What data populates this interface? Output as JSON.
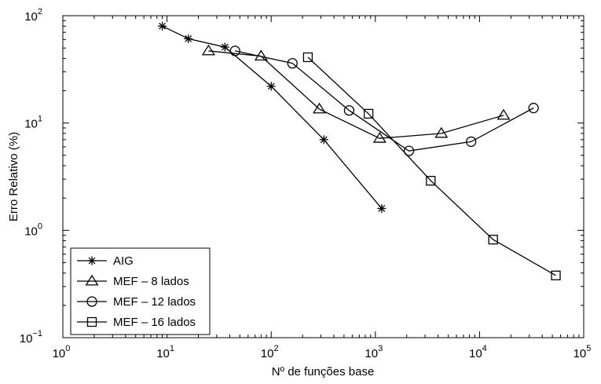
{
  "chart_data": {
    "type": "line",
    "xscale": "log",
    "yscale": "log",
    "xlim": [
      1,
      100000
    ],
    "ylim": [
      0.1,
      100
    ],
    "xlabel": "Nº de funções base",
    "ylabel": "Erro Relativo (%)",
    "x_ticks": [
      {
        "value": 1,
        "base": "10",
        "exp": "0"
      },
      {
        "value": 10,
        "base": "10",
        "exp": "1"
      },
      {
        "value": 100,
        "base": "10",
        "exp": "2"
      },
      {
        "value": 1000,
        "base": "10",
        "exp": "3"
      },
      {
        "value": 10000,
        "base": "10",
        "exp": "4"
      },
      {
        "value": 100000,
        "base": "10",
        "exp": "5"
      }
    ],
    "y_ticks": [
      {
        "value": 0.1,
        "base": "10",
        "exp": "−1"
      },
      {
        "value": 1,
        "base": "10",
        "exp": "0"
      },
      {
        "value": 10,
        "base": "10",
        "exp": "1"
      },
      {
        "value": 100,
        "base": "10",
        "exp": "2"
      }
    ],
    "legend_position": "bottom-left",
    "series": [
      {
        "name": "AIG",
        "marker": "asterisk",
        "points": [
          [
            9,
            80
          ],
          [
            16,
            61
          ],
          [
            36,
            51
          ],
          [
            100,
            22
          ],
          [
            320,
            7
          ],
          [
            1150,
            1.6
          ]
        ]
      },
      {
        "name": "MEF – 8 lados",
        "marker": "triangle",
        "points": [
          [
            25,
            47
          ],
          [
            80,
            42
          ],
          [
            290,
            13.5
          ],
          [
            1100,
            7.2
          ],
          [
            4300,
            8
          ],
          [
            17000,
            11.8
          ]
        ]
      },
      {
        "name": "MEF – 12 lados",
        "marker": "circle",
        "points": [
          [
            45,
            47
          ],
          [
            160,
            36
          ],
          [
            560,
            13.1
          ],
          [
            2100,
            5.5
          ],
          [
            8300,
            6.7
          ],
          [
            33000,
            13.8
          ]
        ]
      },
      {
        "name": "MEF – 16 lados",
        "marker": "square",
        "points": [
          [
            225,
            41
          ],
          [
            860,
            12.2
          ],
          [
            3400,
            2.9
          ],
          [
            13500,
            0.82
          ],
          [
            54000,
            0.38
          ]
        ]
      }
    ]
  }
}
